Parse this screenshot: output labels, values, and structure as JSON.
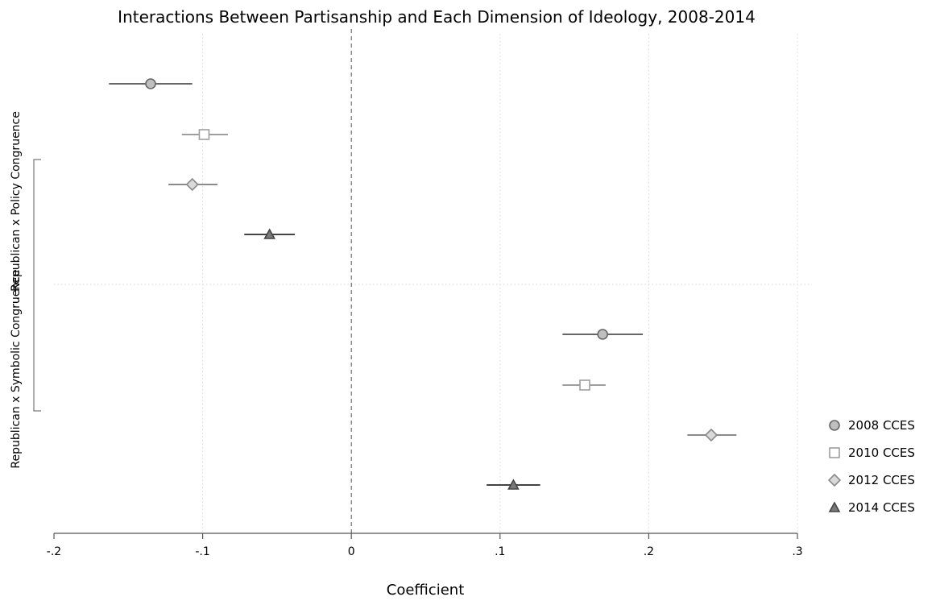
{
  "chart_data": {
    "type": "scatter",
    "title": "Interactions Between Partisanship and Each Dimension of Ideology, 2008-2014",
    "xlabel": "Coefficient",
    "ylabel": "",
    "xlim": [
      -0.2,
      0.3
    ],
    "xticks": [
      {
        "value": -0.2,
        "label": "-.2"
      },
      {
        "value": -0.1,
        "label": "-.1"
      },
      {
        "value": 0,
        "label": "0"
      },
      {
        "value": 0.1,
        "label": ".1"
      },
      {
        "value": 0.2,
        "label": ".2"
      },
      {
        "value": 0.3,
        "label": ".3"
      }
    ],
    "groups": [
      {
        "label": "Republican x Policy Congruence"
      },
      {
        "label": "Republican x Symbolic Congruence"
      }
    ],
    "reference_line": {
      "x": 0,
      "style": "dashed"
    },
    "grid": true,
    "legend_position": "right",
    "series": [
      {
        "name": "2008 CCES",
        "marker": "circle",
        "color": "#666666",
        "fill": "#bfbfbf",
        "points": [
          {
            "group": "Republican x Policy Congruence",
            "estimate": -0.135,
            "ci": [
              -0.163,
              -0.107
            ]
          },
          {
            "group": "Republican x Symbolic Congruence",
            "estimate": 0.169,
            "ci": [
              0.142,
              0.196
            ]
          }
        ]
      },
      {
        "name": "2010 CCES",
        "marker": "square",
        "color": "#9e9e9e",
        "fill": "#ffffff",
        "points": [
          {
            "group": "Republican x Policy Congruence",
            "estimate": -0.099,
            "ci": [
              -0.114,
              -0.083
            ]
          },
          {
            "group": "Republican x Symbolic Congruence",
            "estimate": 0.157,
            "ci": [
              0.142,
              0.171
            ]
          }
        ]
      },
      {
        "name": "2012 CCES",
        "marker": "diamond",
        "color": "#8a8a8a",
        "fill": "#d9d9d9",
        "points": [
          {
            "group": "Republican x Policy Congruence",
            "estimate": -0.107,
            "ci": [
              -0.123,
              -0.09
            ]
          },
          {
            "group": "Republican x Symbolic Congruence",
            "estimate": 0.242,
            "ci": [
              0.226,
              0.259
            ]
          }
        ]
      },
      {
        "name": "2014 CCES",
        "marker": "triangle",
        "color": "#444444",
        "fill": "#7a7a7a",
        "points": [
          {
            "group": "Republican x Policy Congruence",
            "estimate": -0.055,
            "ci": [
              -0.072,
              -0.038
            ]
          },
          {
            "group": "Republican x Symbolic Congruence",
            "estimate": 0.109,
            "ci": [
              0.091,
              0.127
            ]
          }
        ]
      }
    ]
  }
}
